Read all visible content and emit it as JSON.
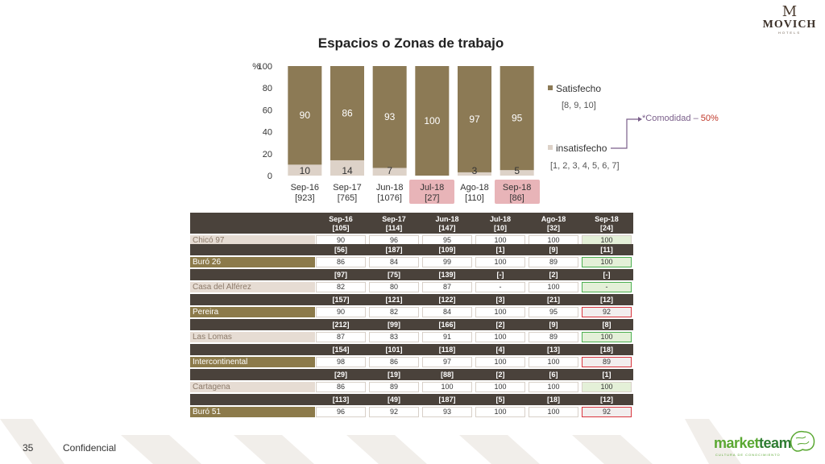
{
  "brand": {
    "name": "MOVICH",
    "sub": "HOTELS"
  },
  "chart_data": {
    "type": "bar",
    "title": "Espacios o Zonas de trabajo",
    "ylabel": "%",
    "ylim": [
      0,
      100
    ],
    "yticks": [
      "0",
      "20",
      "40",
      "60",
      "80",
      "100"
    ],
    "categories": [
      "Sep-16",
      "Sep-17",
      "Jun-18",
      "Jul-18",
      "Ago-18",
      "Sep-18"
    ],
    "counts": [
      "[923]",
      "[765]",
      "[1076]",
      "[27]",
      "[110]",
      "[86]"
    ],
    "highlighted": [
      "Jul-18",
      "Sep-18"
    ],
    "series": [
      {
        "name": "insatisfecho",
        "sublabel": "[1, 2, 3, 4, 5, 6, 7]",
        "values": [
          10,
          14,
          7,
          0,
          3,
          5
        ],
        "labels": [
          "10",
          "14",
          "7",
          "",
          "3",
          "5"
        ],
        "color": "#ddd2c8"
      },
      {
        "name": "Satisfecho",
        "sublabel": "[8, 9, 10]",
        "values": [
          90,
          86,
          93,
          100,
          97,
          95
        ],
        "labels": [
          "90",
          "86",
          "93",
          "100",
          "97",
          "95"
        ],
        "color": "#8c7a55"
      }
    ],
    "legend": "right",
    "grid": false
  },
  "note": {
    "text": "*Comodidad – ",
    "pct": "50%"
  },
  "table": {
    "columns": [
      "Sep-16",
      "Sep-17",
      "Jun-18",
      "Jul-18",
      "Ago-18",
      "Sep-18"
    ],
    "rows": [
      {
        "name": "Chicó 97",
        "style": "light",
        "counts": [
          "[105]",
          "[114]",
          "[147]",
          "[10]",
          "[32]",
          "[24]"
        ],
        "values": [
          "90",
          "96",
          "95",
          "100",
          "100",
          "100"
        ],
        "last": "greenfill"
      },
      {
        "name": "Buró 26",
        "style": "olive",
        "counts": [
          "[56]",
          "[187]",
          "[109]",
          "[1]",
          "[9]",
          "[11]"
        ],
        "values": [
          "86",
          "84",
          "99",
          "100",
          "89",
          "100"
        ],
        "last": "green"
      },
      {
        "name": "Casa del Alférez",
        "style": "light",
        "counts": [
          "[97]",
          "[75]",
          "[139]",
          "[-]",
          "[2]",
          "[-]"
        ],
        "values": [
          "82",
          "80",
          "87",
          "-",
          "100",
          "-"
        ],
        "last": "green"
      },
      {
        "name": "Pereira",
        "style": "olive",
        "counts": [
          "[157]",
          "[121]",
          "[122]",
          "[3]",
          "[21]",
          "[12]"
        ],
        "values": [
          "90",
          "82",
          "84",
          "100",
          "95",
          "92"
        ],
        "last": "red"
      },
      {
        "name": "Las Lomas",
        "style": "light",
        "counts": [
          "[212]",
          "[99]",
          "[166]",
          "[2]",
          "[9]",
          "[8]"
        ],
        "values": [
          "87",
          "83",
          "91",
          "100",
          "89",
          "100"
        ],
        "last": "green"
      },
      {
        "name": "Intercontinental",
        "style": "olive",
        "counts": [
          "[154]",
          "[101]",
          "[118]",
          "[4]",
          "[13]",
          "[18]"
        ],
        "values": [
          "98",
          "86",
          "97",
          "100",
          "100",
          "89"
        ],
        "last": "red"
      },
      {
        "name": "Cartagena",
        "style": "light",
        "counts": [
          "[29]",
          "[19]",
          "[88]",
          "[2]",
          "[6]",
          "[1]"
        ],
        "values": [
          "86",
          "89",
          "100",
          "100",
          "100",
          "100"
        ],
        "last": "greenfill"
      },
      {
        "name": "Buró 51",
        "style": "olive",
        "counts": [
          "[113]",
          "[49]",
          "[187]",
          "[5]",
          "[18]",
          "[12]"
        ],
        "values": [
          "96",
          "92",
          "93",
          "100",
          "100",
          "92"
        ],
        "last": "red"
      }
    ]
  },
  "footer": {
    "page": "35",
    "label": "Confidencial"
  },
  "partner": {
    "name_a": "market",
    "name_b": "team",
    "tag": "CULTURA DE CONOCIMIENTO"
  }
}
